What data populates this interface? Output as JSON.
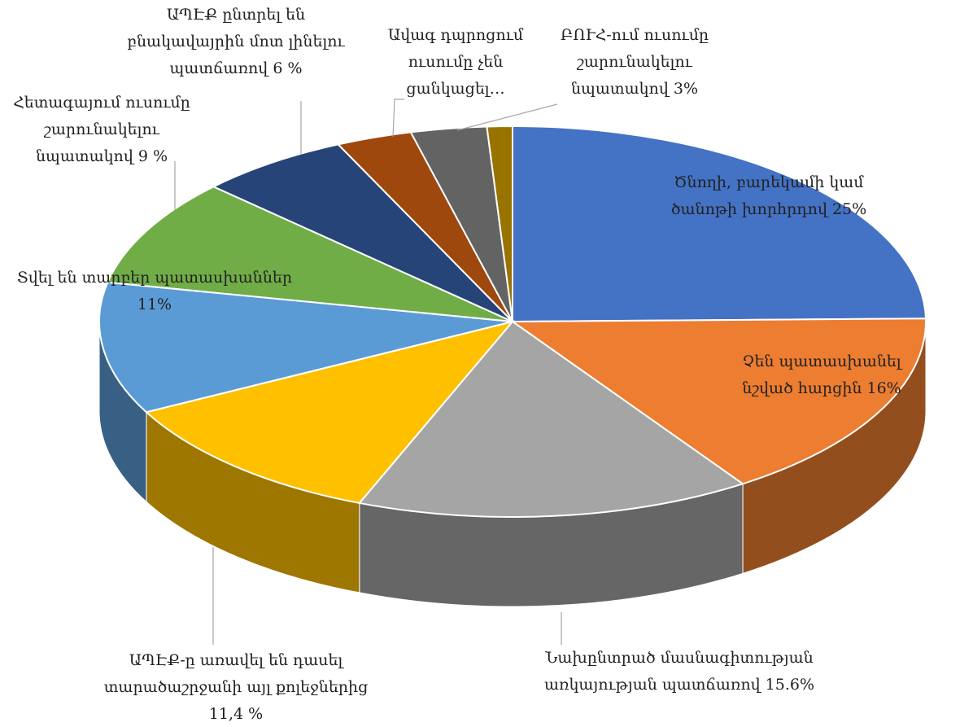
{
  "chart_data": {
    "type": "pie3d",
    "categories": [
      "Ծնողի, բարեկամի կամ ծանոթի խորհրդով 25%",
      "Չեն պատասխանել նշված հարցին 16%",
      "Նախընտրած մասնագիտության առկայության պատճառով 15.6%",
      "ԱՊԷՔ-ը առավել են դասել տարածաշրջանի այլ քոլեջներից 11,4 %",
      "Տվել են տարբեր պատասխաններ 11%",
      "Հետագայում ուսումը շարունակելու նպատակով 9 %",
      "ԱՊԷՔ ընտրել են բնակավայրին մոտ լինելու պատճառով 6 %",
      "Ավագ դպրոցում ուսումը չեն ցանկացել…",
      "ԲՈՒՀ-ում ուսումը շարունակելու նպատակով 3%",
      null
    ],
    "values": [
      25,
      16,
      15.6,
      11.4,
      11,
      9,
      6,
      3,
      3,
      1
    ],
    "colors": [
      "#4472c4",
      "#ed7d31",
      "#a5a5a5",
      "#ffc000",
      "#5b9bd5",
      "#70ad47",
      "#264478",
      "#9e480e",
      "#636363",
      "#997300"
    ]
  }
}
